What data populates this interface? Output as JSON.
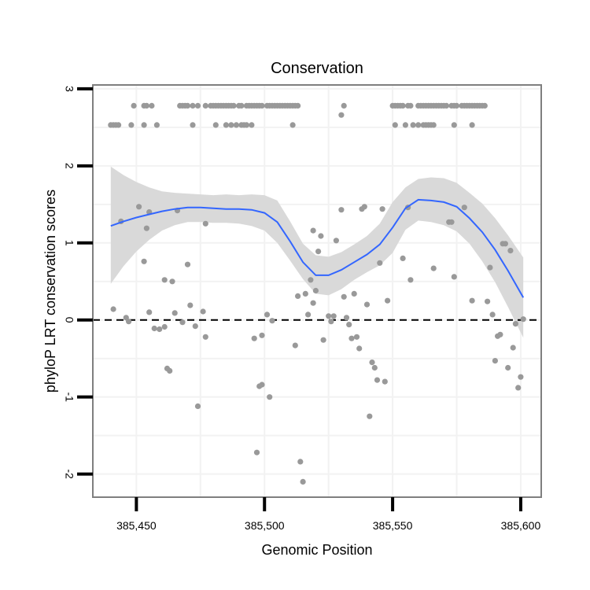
{
  "chart_data": {
    "type": "scatter",
    "title": "Conservation",
    "xlabel": "Genomic Position",
    "ylabel": "phyloP LRT conservation scores",
    "xlim": [
      385433,
      385608
    ],
    "ylim": [
      -2.3,
      3.05
    ],
    "x_ticks": [
      {
        "value": 385450,
        "label": "385,450"
      },
      {
        "value": 385500,
        "label": "385,500"
      },
      {
        "value": 385550,
        "label": "385,550"
      },
      {
        "value": 385600,
        "label": "385,600"
      }
    ],
    "y_ticks": [
      {
        "value": -2,
        "label": "-2"
      },
      {
        "value": -1,
        "label": "-1"
      },
      {
        "value": 0,
        "label": "0"
      },
      {
        "value": 1,
        "label": "1"
      },
      {
        "value": 2,
        "label": "2"
      },
      {
        "value": 3,
        "label": "3"
      }
    ],
    "reference_line": {
      "y": 0,
      "style": "dashed",
      "color": "#000000"
    },
    "grid": true,
    "colors": {
      "points": "#999999",
      "smooth_line": "#3366FF",
      "confidence_band": "#D9D9D9",
      "panel_border": "#7F7F7F"
    },
    "points": [
      [
        385440,
        2.53
      ],
      [
        385441,
        2.53
      ],
      [
        385442,
        2.53
      ],
      [
        385443,
        2.53
      ],
      [
        385448,
        2.53
      ],
      [
        385453,
        2.53
      ],
      [
        385458,
        2.53
      ],
      [
        385472,
        2.53
      ],
      [
        385481,
        2.53
      ],
      [
        385485,
        2.53
      ],
      [
        385487,
        2.53
      ],
      [
        385489,
        2.53
      ],
      [
        385491,
        2.53
      ],
      [
        385492,
        2.53
      ],
      [
        385493,
        2.53
      ],
      [
        385495,
        2.53
      ],
      [
        385511,
        2.53
      ],
      [
        385551,
        2.53
      ],
      [
        385555,
        2.53
      ],
      [
        385558,
        2.53
      ],
      [
        385560,
        2.53
      ],
      [
        385562,
        2.53
      ],
      [
        385563,
        2.53
      ],
      [
        385564,
        2.53
      ],
      [
        385565,
        2.53
      ],
      [
        385566,
        2.53
      ],
      [
        385574,
        2.53
      ],
      [
        385581,
        2.53
      ],
      [
        385449,
        2.78
      ],
      [
        385453,
        2.78
      ],
      [
        385454,
        2.78
      ],
      [
        385456,
        2.78
      ],
      [
        385467,
        2.78
      ],
      [
        385468,
        2.78
      ],
      [
        385469,
        2.78
      ],
      [
        385470,
        2.78
      ],
      [
        385472,
        2.78
      ],
      [
        385474,
        2.78
      ],
      [
        385477,
        2.78
      ],
      [
        385479,
        2.78
      ],
      [
        385480,
        2.78
      ],
      [
        385481,
        2.78
      ],
      [
        385482,
        2.78
      ],
      [
        385483,
        2.78
      ],
      [
        385484,
        2.78
      ],
      [
        385485,
        2.78
      ],
      [
        385486,
        2.78
      ],
      [
        385487,
        2.78
      ],
      [
        385488,
        2.78
      ],
      [
        385490,
        2.78
      ],
      [
        385491,
        2.78
      ],
      [
        385493,
        2.78
      ],
      [
        385494,
        2.78
      ],
      [
        385495,
        2.78
      ],
      [
        385496,
        2.78
      ],
      [
        385497,
        2.78
      ],
      [
        385498,
        2.78
      ],
      [
        385499,
        2.78
      ],
      [
        385501,
        2.78
      ],
      [
        385502,
        2.78
      ],
      [
        385503,
        2.78
      ],
      [
        385504,
        2.78
      ],
      [
        385505,
        2.78
      ],
      [
        385506,
        2.78
      ],
      [
        385507,
        2.78
      ],
      [
        385508,
        2.78
      ],
      [
        385509,
        2.78
      ],
      [
        385510,
        2.78
      ],
      [
        385511,
        2.78
      ],
      [
        385512,
        2.78
      ],
      [
        385513,
        2.78
      ],
      [
        385531,
        2.78
      ],
      [
        385550,
        2.78
      ],
      [
        385551,
        2.78
      ],
      [
        385552,
        2.78
      ],
      [
        385553,
        2.78
      ],
      [
        385554,
        2.78
      ],
      [
        385556,
        2.78
      ],
      [
        385557,
        2.78
      ],
      [
        385560,
        2.78
      ],
      [
        385561,
        2.78
      ],
      [
        385562,
        2.78
      ],
      [
        385563,
        2.78
      ],
      [
        385564,
        2.78
      ],
      [
        385565,
        2.78
      ],
      [
        385566,
        2.78
      ],
      [
        385567,
        2.78
      ],
      [
        385568,
        2.78
      ],
      [
        385569,
        2.78
      ],
      [
        385570,
        2.78
      ],
      [
        385571,
        2.78
      ],
      [
        385573,
        2.78
      ],
      [
        385574,
        2.78
      ],
      [
        385575,
        2.78
      ],
      [
        385577,
        2.78
      ],
      [
        385578,
        2.78
      ],
      [
        385579,
        2.78
      ],
      [
        385580,
        2.78
      ],
      [
        385581,
        2.78
      ],
      [
        385582,
        2.78
      ],
      [
        385583,
        2.78
      ],
      [
        385584,
        2.78
      ],
      [
        385585,
        2.78
      ],
      [
        385586,
        2.78
      ],
      [
        385530,
        2.66
      ],
      [
        385444,
        1.28
      ],
      [
        385451,
        1.47
      ],
      [
        385454,
        1.19
      ],
      [
        385455,
        1.4
      ],
      [
        385466,
        1.42
      ],
      [
        385477,
        1.25
      ],
      [
        385470,
        0.72
      ],
      [
        385453,
        0.76
      ],
      [
        385461,
        0.52
      ],
      [
        385464,
        0.5
      ],
      [
        385471,
        0.19
      ],
      [
        385476,
        0.11
      ],
      [
        385465,
        0.09
      ],
      [
        385455,
        0.1
      ],
      [
        385441,
        0.14
      ],
      [
        385446,
        0.03
      ],
      [
        385447,
        -0.02
      ],
      [
        385457,
        -0.11
      ],
      [
        385459,
        -0.12
      ],
      [
        385461,
        -0.09
      ],
      [
        385468,
        -0.03
      ],
      [
        385473,
        -0.08
      ],
      [
        385477,
        -0.22
      ],
      [
        385462,
        -0.63
      ],
      [
        385463,
        -0.66
      ],
      [
        385474,
        -1.12
      ],
      [
        385496,
        -0.24
      ],
      [
        385499,
        -0.2
      ],
      [
        385501,
        0.07
      ],
      [
        385503,
        -0.01
      ],
      [
        385499,
        -0.84
      ],
      [
        385498,
        -0.86
      ],
      [
        385502,
        -1.0
      ],
      [
        385497,
        -1.72
      ],
      [
        385512,
        -0.33
      ],
      [
        385514,
        -1.84
      ],
      [
        385515,
        -2.1
      ],
      [
        385516,
        0.34
      ],
      [
        385513,
        0.31
      ],
      [
        385519,
        0.22
      ],
      [
        385518,
        0.52
      ],
      [
        385520,
        0.38
      ],
      [
        385517,
        0.07
      ],
      [
        385519,
        1.16
      ],
      [
        385521,
        0.89
      ],
      [
        385522,
        1.09
      ],
      [
        385523,
        -0.26
      ],
      [
        385525,
        0.05
      ],
      [
        385526,
        -0.02
      ],
      [
        385527,
        0.05
      ],
      [
        385528,
        1.03
      ],
      [
        385530,
        1.43
      ],
      [
        385531,
        0.3
      ],
      [
        385532,
        0.03
      ],
      [
        385533,
        -0.06
      ],
      [
        385534,
        -0.24
      ],
      [
        385535,
        0.34
      ],
      [
        385536,
        -0.22
      ],
      [
        385537,
        -0.37
      ],
      [
        385538,
        1.44
      ],
      [
        385539,
        1.47
      ],
      [
        385540,
        0.2
      ],
      [
        385541,
        -1.25
      ],
      [
        385542,
        -0.55
      ],
      [
        385543,
        -0.62
      ],
      [
        385544,
        -0.78
      ],
      [
        385545,
        0.74
      ],
      [
        385546,
        1.44
      ],
      [
        385547,
        -0.8
      ],
      [
        385548,
        0.25
      ],
      [
        385554,
        0.8
      ],
      [
        385556,
        1.46
      ],
      [
        385557,
        0.52
      ],
      [
        385566,
        0.67
      ],
      [
        385572,
        1.27
      ],
      [
        385573,
        1.27
      ],
      [
        385574,
        0.56
      ],
      [
        385578,
        1.46
      ],
      [
        385581,
        0.25
      ],
      [
        385587,
        0.24
      ],
      [
        385588,
        0.68
      ],
      [
        385589,
        0.07
      ],
      [
        385590,
        -0.53
      ],
      [
        385591,
        -0.21
      ],
      [
        385592,
        -0.19
      ],
      [
        385593,
        0.99
      ],
      [
        385594,
        0.99
      ],
      [
        385595,
        -0.62
      ],
      [
        385596,
        0.9
      ],
      [
        385597,
        -0.36
      ],
      [
        385598,
        -0.05
      ],
      [
        385599,
        -0.88
      ],
      [
        385600,
        -0.74
      ],
      [
        385601,
        0.01
      ]
    ],
    "smooth": {
      "x": [
        385440,
        385445,
        385450,
        385455,
        385460,
        385465,
        385470,
        385475,
        385480,
        385485,
        385490,
        385495,
        385500,
        385505,
        385510,
        385515,
        385520,
        385525,
        385530,
        385535,
        385540,
        385545,
        385550,
        385555,
        385560,
        385565,
        385570,
        385575,
        385580,
        385585,
        385590,
        385595,
        385601
      ],
      "y": [
        1.22,
        1.28,
        1.33,
        1.37,
        1.41,
        1.44,
        1.46,
        1.46,
        1.45,
        1.44,
        1.44,
        1.43,
        1.39,
        1.27,
        1.02,
        0.75,
        0.58,
        0.58,
        0.65,
        0.75,
        0.85,
        0.98,
        1.2,
        1.45,
        1.56,
        1.55,
        1.53,
        1.47,
        1.32,
        1.14,
        0.91,
        0.64,
        0.29
      ],
      "upper": [
        1.99,
        1.88,
        1.79,
        1.72,
        1.67,
        1.65,
        1.64,
        1.63,
        1.62,
        1.63,
        1.62,
        1.63,
        1.62,
        1.55,
        1.28,
        0.99,
        0.84,
        0.82,
        0.88,
        0.98,
        1.09,
        1.25,
        1.53,
        1.72,
        1.83,
        1.85,
        1.84,
        1.78,
        1.65,
        1.51,
        1.32,
        1.1,
        0.81
      ],
      "lower": [
        0.47,
        0.7,
        0.89,
        1.04,
        1.16,
        1.23,
        1.27,
        1.27,
        1.26,
        1.26,
        1.25,
        1.22,
        1.16,
        1.0,
        0.77,
        0.53,
        0.34,
        0.32,
        0.4,
        0.52,
        0.62,
        0.71,
        0.87,
        1.17,
        1.29,
        1.27,
        1.23,
        1.15,
        0.99,
        0.76,
        0.49,
        0.17,
        -0.23
      ]
    }
  }
}
